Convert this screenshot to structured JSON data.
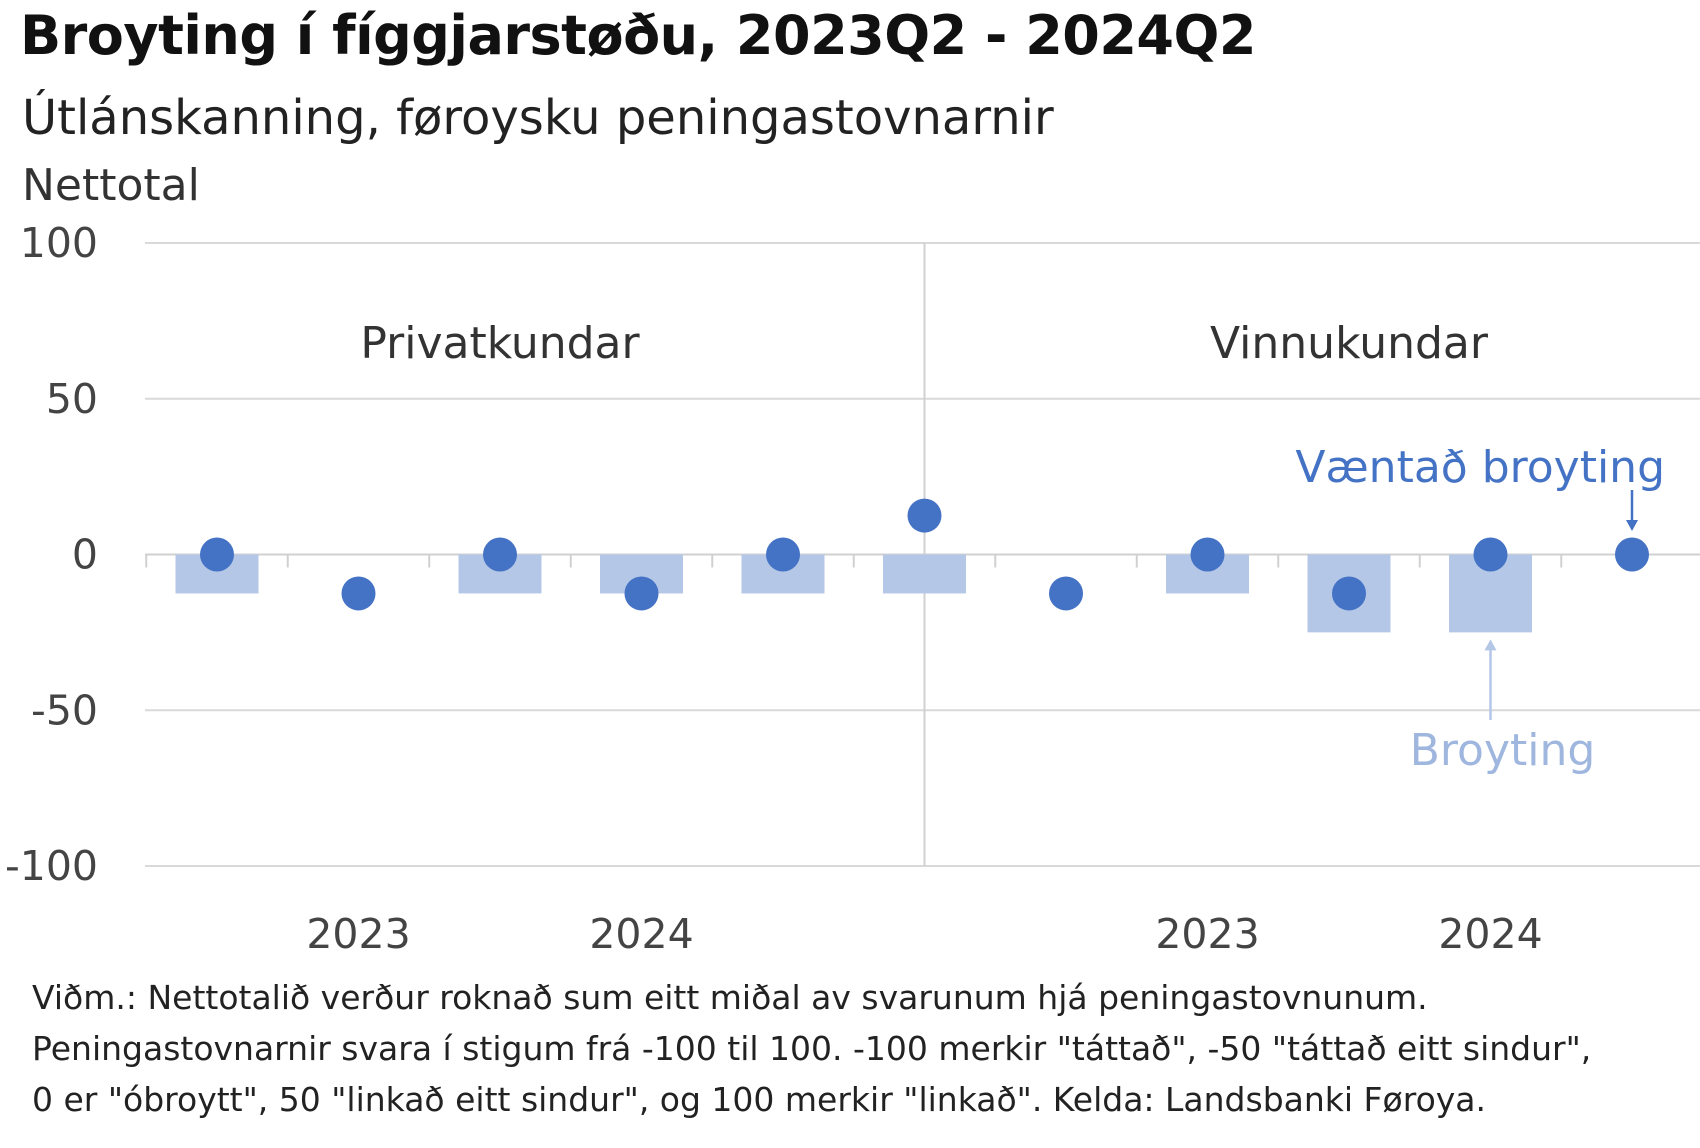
{
  "title": "Broyting í fíggjarstøðu, 2023Q2 - 2024Q2",
  "subtitle": "Útlánskanning, føroysku peningastovnarnir",
  "chart_data": {
    "type": "bar",
    "unit_label": "Nettotal",
    "ylim": [
      -100,
      100
    ],
    "y_ticks": [
      100,
      50,
      0,
      -50,
      -100
    ],
    "x_year_labels": [
      {
        "label": "2023",
        "index": 1
      },
      {
        "label": "2024",
        "index": 3
      },
      {
        "label": "2023",
        "index": 7
      },
      {
        "label": "2024",
        "index": 9
      }
    ],
    "groups": [
      {
        "name": "Privatkundar",
        "start": 0,
        "count": 5
      },
      {
        "name": "Vinnukundar",
        "start": 6,
        "count": 5
      }
    ],
    "series": [
      {
        "name": "Broyting",
        "kind": "bar",
        "color": "#b4c7e7",
        "values": [
          -12.5,
          null,
          -12.5,
          -12.5,
          -12.5,
          -12.5,
          null,
          -12.5,
          -25,
          -25,
          null
        ]
      },
      {
        "name": "Væntað broyting",
        "kind": "dot",
        "color": "#4472c4",
        "values": [
          0,
          -12.5,
          0,
          -12.5,
          0,
          12.5,
          -12.5,
          0,
          -12.5,
          0,
          0
        ]
      }
    ],
    "grid": true
  },
  "note_lines": [
    "Viðm.: Nettotalið verður roknað sum eitt miðal av svarunum hjá peningastovnunum.",
    "Peningastovnarnir svara í stigum frá -100 til 100. -100 merkir \"táttað\", -50 \"táttað eitt sindur\",",
    "0 er \"óbroytt\", 50 \"linkað eitt sindur\", og 100 merkir \"linkað\". Kelda: Landsbanki Føroya."
  ]
}
